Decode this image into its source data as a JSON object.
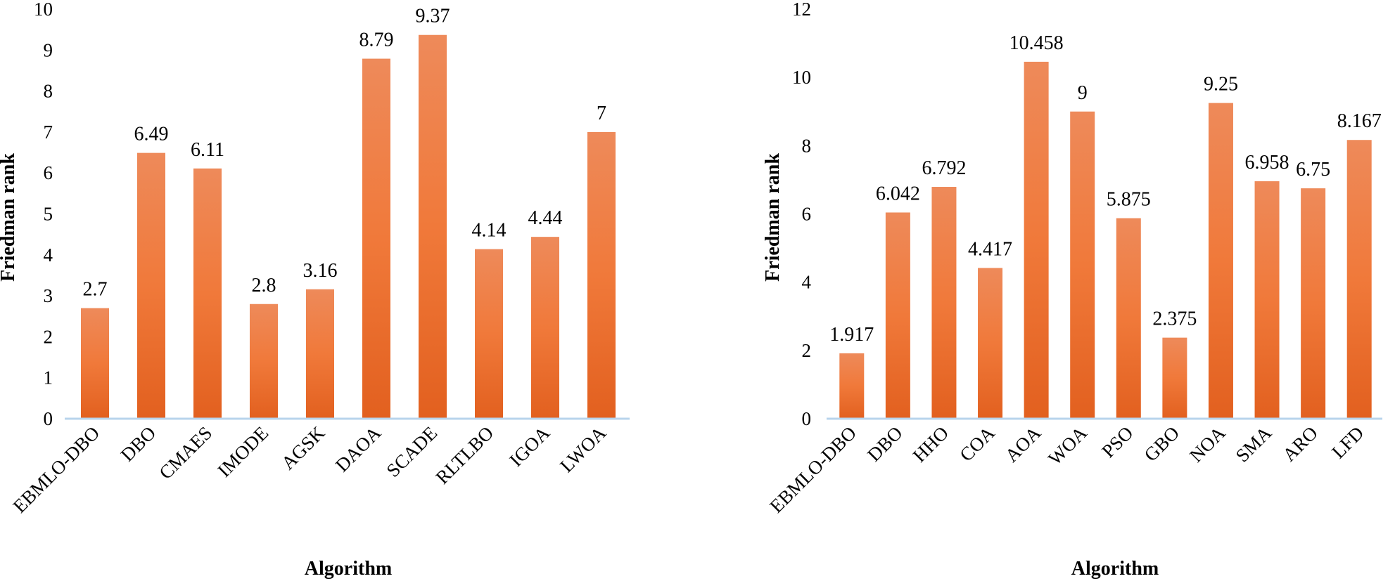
{
  "colors": {
    "bar_top": "#EE8A5A",
    "bar_bottom": "#E2601F",
    "axis": "#B8D4EC"
  },
  "chart_data": [
    {
      "type": "bar",
      "title": "",
      "xlabel": "Algorithm",
      "ylabel": "Friedman rank",
      "ylim": [
        0,
        10
      ],
      "yticks": [
        "0",
        "1",
        "2",
        "3",
        "4",
        "5",
        "6",
        "7",
        "8",
        "9",
        "10"
      ],
      "categories": [
        "EBMLO-DBO",
        "DBO",
        "CMAES",
        "IMODE",
        "AGSK",
        "DAOA",
        "SCADE",
        "RLTLBO",
        "IGOA",
        "LWOA"
      ],
      "values": [
        2.7,
        6.49,
        6.11,
        2.8,
        3.16,
        8.79,
        9.37,
        4.14,
        4.44,
        7
      ],
      "value_labels": [
        "2.7",
        "6.49",
        "6.11",
        "2.8",
        "3.16",
        "8.79",
        "9.37",
        "4.14",
        "4.44",
        "7"
      ]
    },
    {
      "type": "bar",
      "title": "",
      "xlabel": "Algorithm",
      "ylabel": "Friedman rank",
      "ylim": [
        0,
        12
      ],
      "yticks": [
        "0",
        "2",
        "4",
        "6",
        "8",
        "10",
        "12"
      ],
      "categories": [
        "EBMLO-DBO",
        "DBO",
        "HHO",
        "COA",
        "AOA",
        "WOA",
        "PSO",
        "GBO",
        "NOA",
        "SMA",
        "ARO",
        "LFD"
      ],
      "values": [
        1.917,
        6.042,
        6.792,
        4.417,
        10.458,
        9,
        5.875,
        2.375,
        9.25,
        6.958,
        6.75,
        8.167
      ],
      "value_labels": [
        "1.917",
        "6.042",
        "6.792",
        "4.417",
        "10.458",
        "9",
        "5.875",
        "2.375",
        "9.25",
        "6.958",
        "6.75",
        "8.167"
      ]
    }
  ]
}
